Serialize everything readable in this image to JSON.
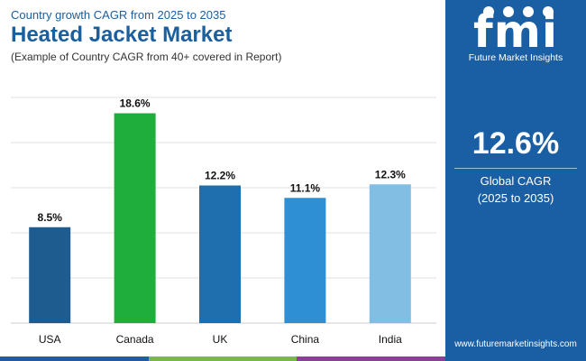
{
  "header": {
    "subtitle": "Country growth CAGR from 2025 to 2035",
    "title": "Heated Jacket Market",
    "note": "(Example of Country CAGR from 40+ covered in Report)"
  },
  "brand": {
    "logo_text": "fmi",
    "logo_caption": "Future Market Insights",
    "website": "www.futuremarketinsights.com"
  },
  "summary": {
    "value": "12.6%",
    "label_line1": "Global CAGR",
    "label_line2": "(2025 to 2035)"
  },
  "colors": {
    "brand_blue": "#1a5fa3",
    "title_blue": "#1a5f9e",
    "bottom_bar": [
      "#1a5fa3",
      "#7ab648",
      "#8b3f96"
    ]
  },
  "chart_data": {
    "type": "bar",
    "categories": [
      "USA",
      "Canada",
      "UK",
      "China",
      "India"
    ],
    "values": [
      8.5,
      18.6,
      12.2,
      11.1,
      12.3
    ],
    "value_labels": [
      "8.5%",
      "18.6%",
      "12.2%",
      "11.1%",
      "12.3%"
    ],
    "colors": [
      "#1e5b8e",
      "#1fae3b",
      "#1f6faf",
      "#2e8fd4",
      "#82bde3"
    ],
    "ylim": [
      0,
      20
    ],
    "grid": true,
    "legend": "none"
  }
}
